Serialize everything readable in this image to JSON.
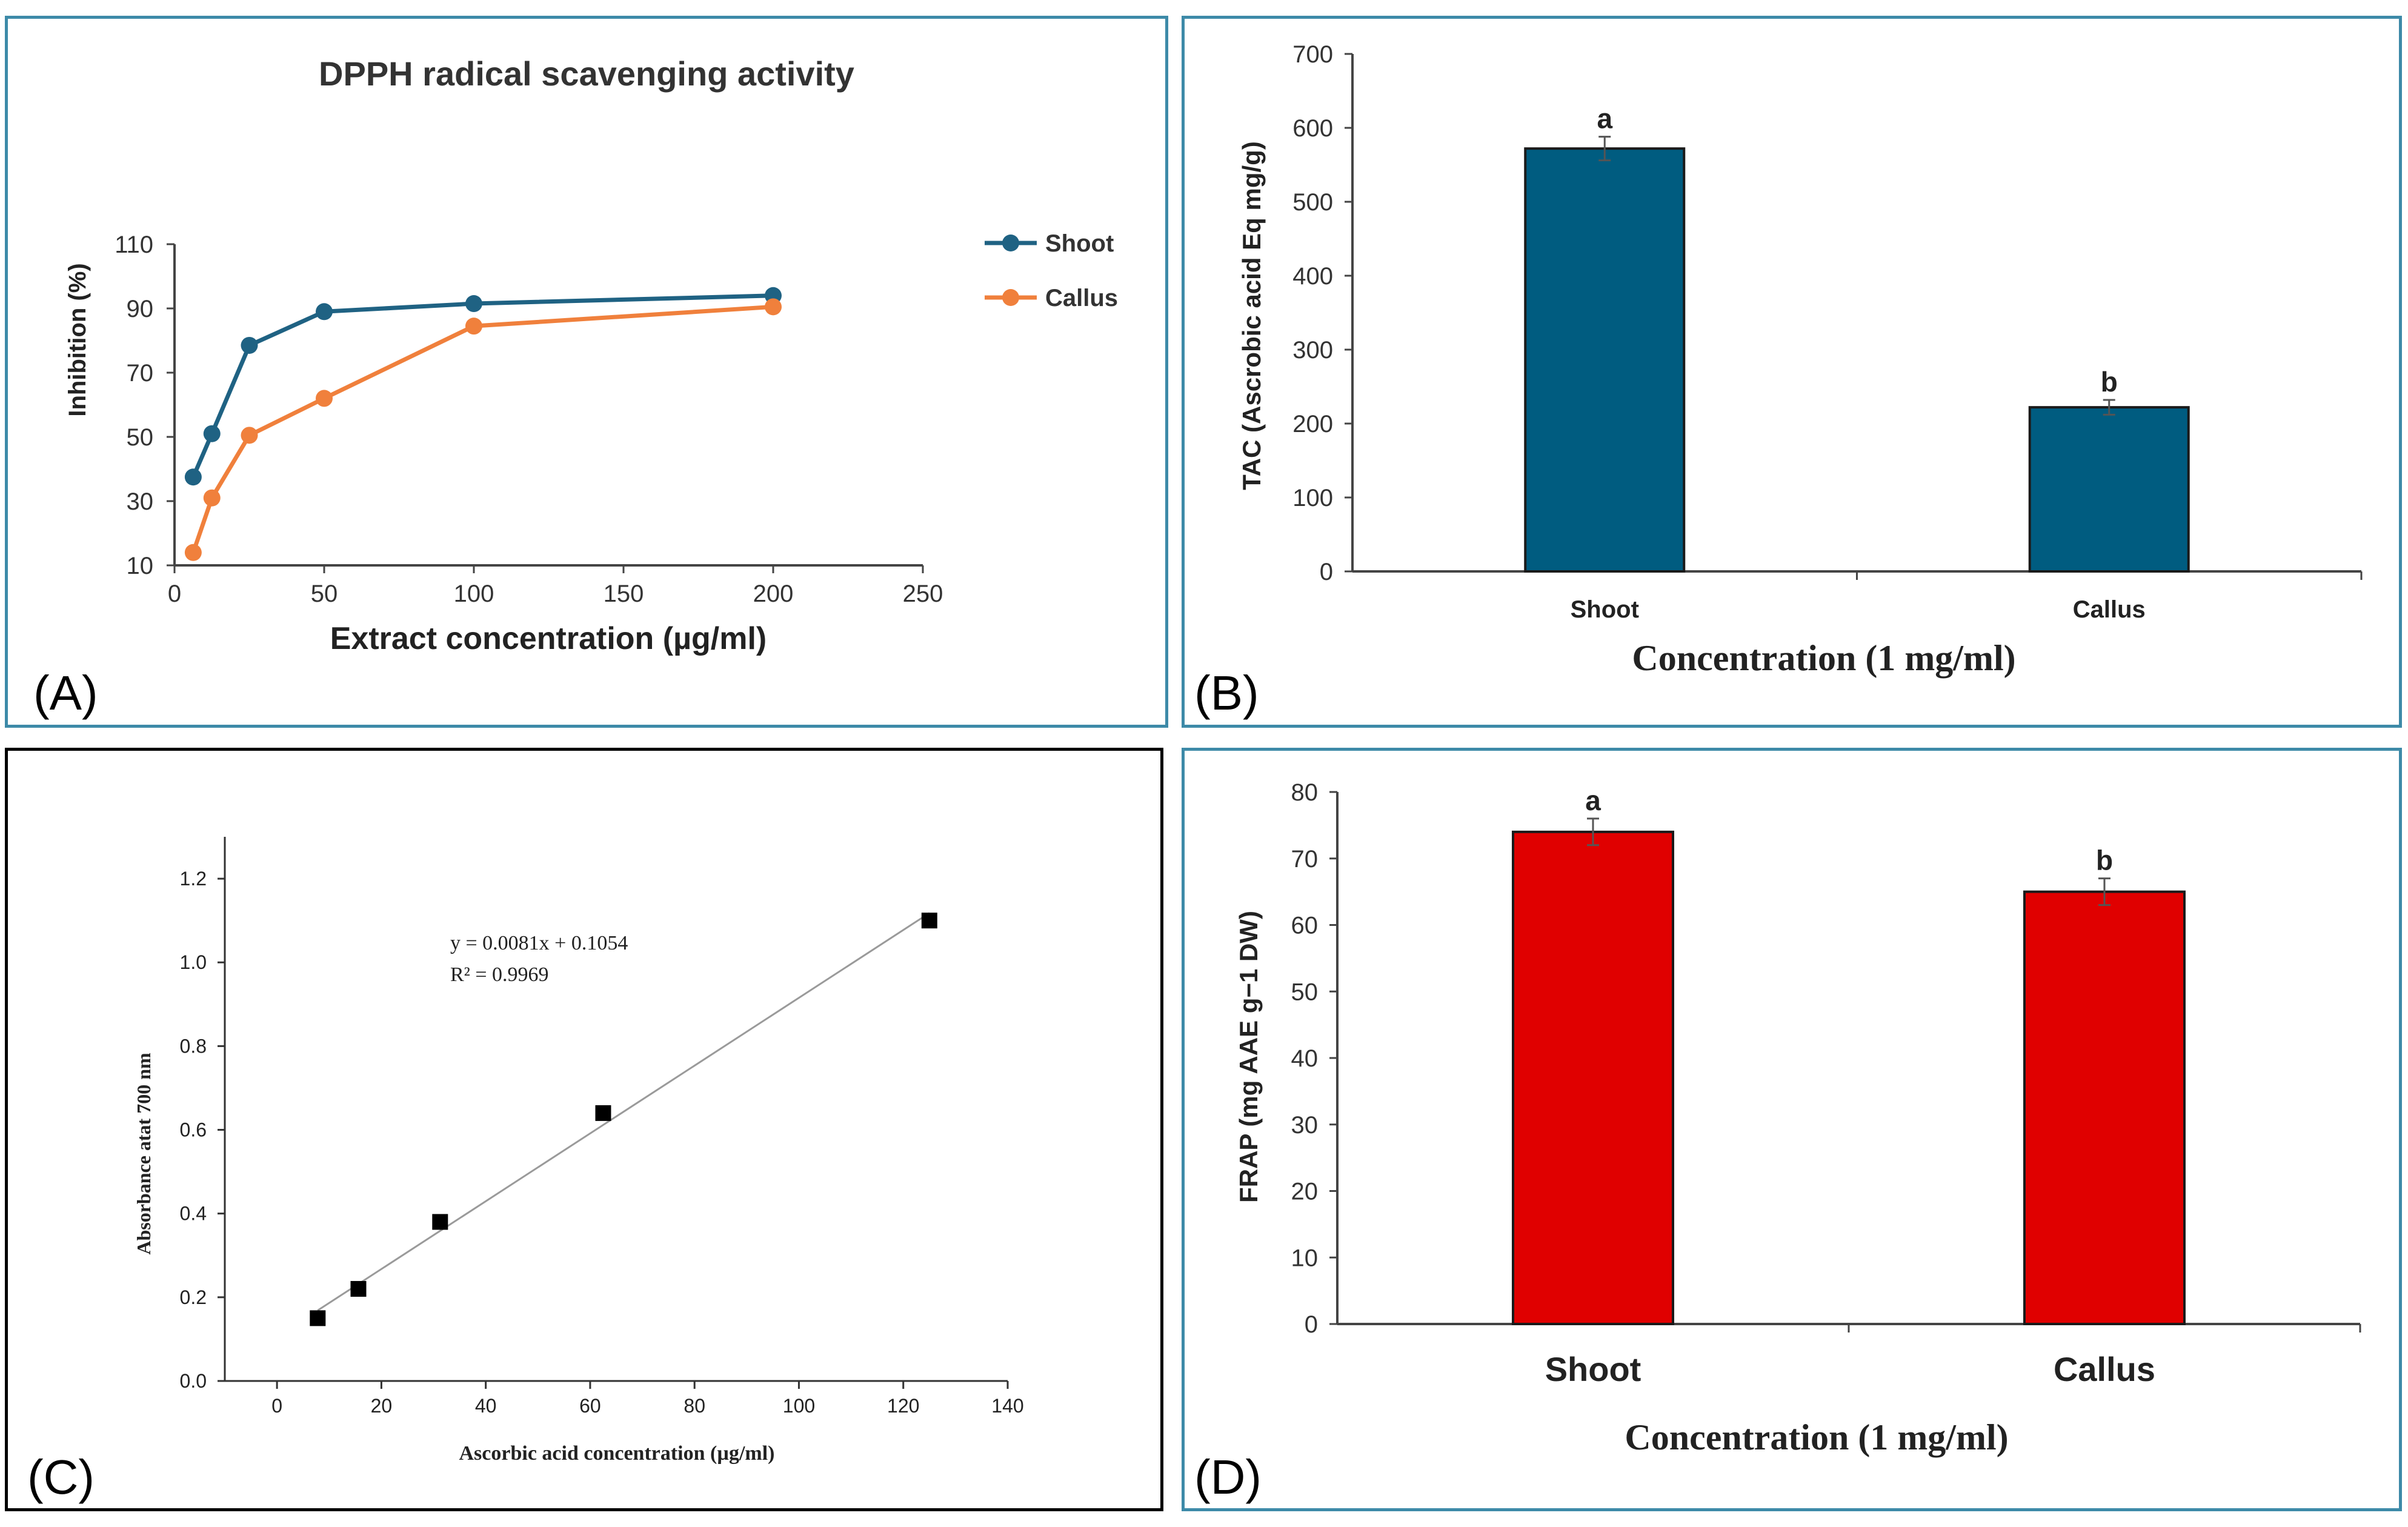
{
  "panels": [
    {
      "id": "A",
      "label": "(A)",
      "frame_color": "#3d8aa8"
    },
    {
      "id": "B",
      "label": "(B)",
      "frame_color": "#3d8aa8"
    },
    {
      "id": "C",
      "label": "(C)",
      "frame_color": "#000000"
    },
    {
      "id": "D",
      "label": "(D)",
      "frame_color": "#3d8aa8"
    }
  ],
  "chart_data": [
    {
      "id": "A",
      "type": "line",
      "title": "DPPH radical scavenging activity",
      "xlabel": "Extract concentration (µg/ml)",
      "ylabel": "Inhibition (%)",
      "xlim": [
        0,
        250
      ],
      "ylim": [
        10,
        110
      ],
      "xticks": [
        0,
        50,
        100,
        150,
        200,
        250
      ],
      "yticks": [
        10,
        30,
        50,
        70,
        90,
        110
      ],
      "legend_position": "right",
      "series": [
        {
          "name": "Shoot",
          "color": "#1f6283",
          "x": [
            6.25,
            12.5,
            25,
            50,
            100,
            200
          ],
          "y": [
            37.5,
            51,
            78.5,
            89,
            91.5,
            94
          ]
        },
        {
          "name": "Callus",
          "color": "#f0803c",
          "x": [
            6.25,
            12.5,
            25,
            50,
            100,
            200
          ],
          "y": [
            14,
            31,
            50.5,
            62,
            84.5,
            90.5
          ]
        }
      ]
    },
    {
      "id": "B",
      "type": "bar",
      "categories": [
        "Shoot",
        "Callus"
      ],
      "values": [
        572,
        222
      ],
      "errors": [
        16,
        10
      ],
      "significance": [
        "a",
        "b"
      ],
      "bar_color": "#005c80",
      "xlabel": "Concentration (1 mg/ml)",
      "ylabel": "TAC (Ascrobic acid  Eq mg/g)",
      "ylim": [
        0,
        700
      ],
      "yticks": [
        0,
        100,
        200,
        300,
        400,
        500,
        600,
        700
      ]
    },
    {
      "id": "C",
      "type": "scatter",
      "xlabel": "Ascorbic acid concentration (µg/ml)",
      "ylabel": "Absorbance atat 700 nm",
      "xlim": [
        -10,
        140
      ],
      "ylim": [
        0,
        1.3
      ],
      "xticks": [
        0,
        20,
        40,
        60,
        80,
        100,
        120,
        140
      ],
      "yticks": [
        0.0,
        0.2,
        0.4,
        0.6,
        0.8,
        1.0,
        1.2
      ],
      "x": [
        7.8,
        15.6,
        31.25,
        62.5,
        125
      ],
      "y": [
        0.15,
        0.22,
        0.38,
        0.64,
        1.1
      ],
      "trendline": {
        "slope": 0.0081,
        "intercept": 0.1054,
        "x_start": 7.8,
        "x_end": 125
      },
      "equation": "y = 0.0081x + 0.1054",
      "r_squared": "R² = 0.9969"
    },
    {
      "id": "D",
      "type": "bar",
      "categories": [
        "Shoot",
        "Callus"
      ],
      "values": [
        74,
        65
      ],
      "errors": [
        2,
        2
      ],
      "significance": [
        "a",
        "b"
      ],
      "bar_color": "#e00000",
      "xlabel": "Concentration (1 mg/ml)",
      "ylabel": "FRAP (mg AAE g−1 DW)",
      "ylim": [
        0,
        80
      ],
      "yticks": [
        0,
        10,
        20,
        30,
        40,
        50,
        60,
        70,
        80
      ]
    }
  ]
}
